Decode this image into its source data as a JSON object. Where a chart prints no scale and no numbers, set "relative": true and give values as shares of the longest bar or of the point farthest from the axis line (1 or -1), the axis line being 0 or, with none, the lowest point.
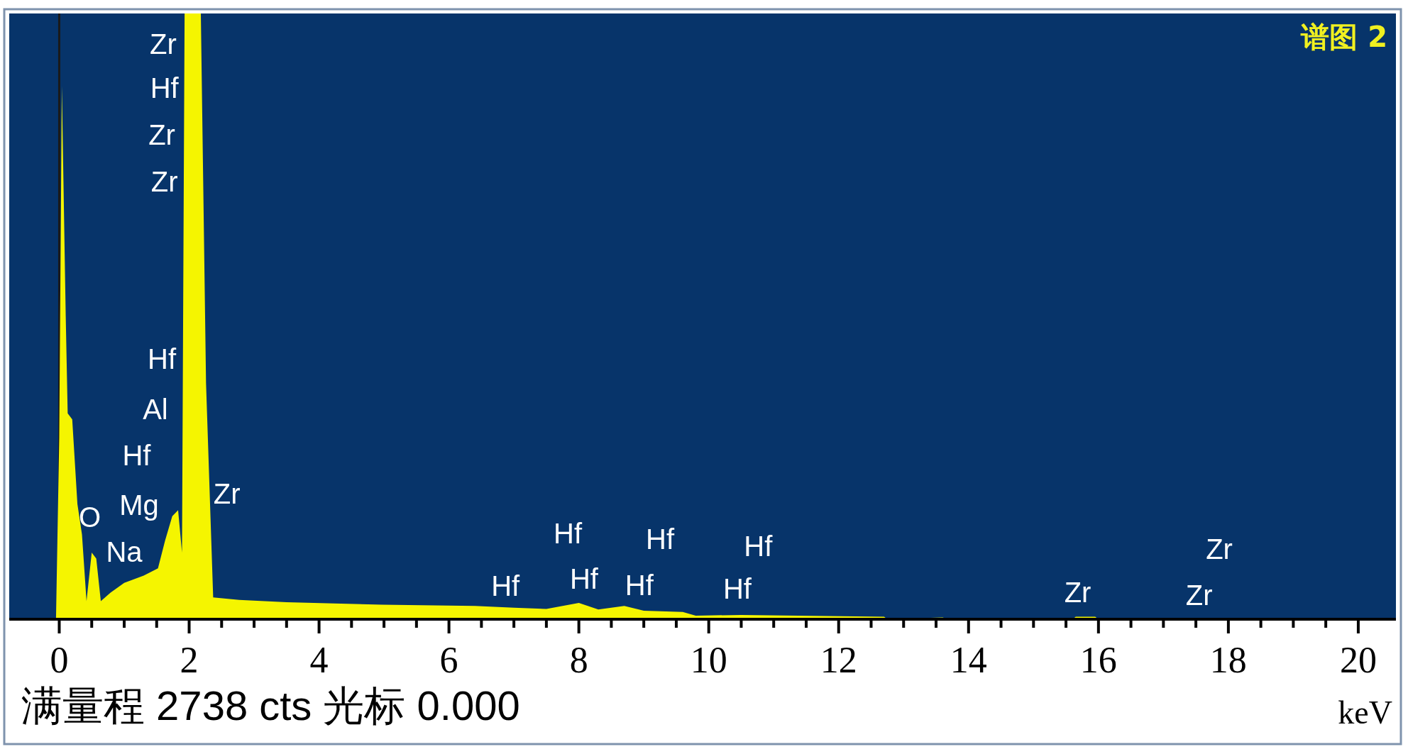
{
  "chart_data": {
    "type": "area",
    "relative": true,
    "title": "谱图 2",
    "xlabel": "keV",
    "x": [
      -0.05,
      0.0,
      0.04,
      0.1,
      0.13,
      0.2,
      0.28,
      0.35,
      0.42,
      0.5,
      0.57,
      0.64,
      0.79,
      1.0,
      1.3,
      1.52,
      1.63,
      1.74,
      1.83,
      1.89,
      1.93,
      2.18,
      2.26,
      2.37,
      2.77,
      3.5,
      4.23,
      4.97,
      6.4,
      7.0,
      7.5,
      8.0,
      8.3,
      8.7,
      9.0,
      9.6,
      9.8,
      10.5,
      12.7,
      12.75,
      13.6,
      13.7,
      15.6,
      15.65,
      15.95,
      16.0,
      20.5
    ],
    "values": [
      0,
      0.3,
      0.88,
      0.5,
      0.34,
      0.33,
      0.19,
      0.14,
      0.03,
      0.11,
      0.1,
      0.03,
      0.044,
      0.06,
      0.072,
      0.084,
      0.13,
      0.17,
      0.18,
      0.11,
      1,
      1,
      0.39,
      0.036,
      0.032,
      0.028,
      0.026,
      0.024,
      0.022,
      0.019,
      0.017,
      0.027,
      0.016,
      0.022,
      0.014,
      0.012,
      0.006,
      0.007,
      0.004,
      0,
      0.003,
      0,
      0,
      0.004,
      0.004,
      0,
      0
    ],
    "color": "#f5f500",
    "xlim": [
      -0.77,
      20.58
    ],
    "xticks": [
      0,
      {
        "value": 0.5,
        "label": null
      },
      {
        "value": 1,
        "label": null
      },
      {
        "value": 1.5,
        "label": null
      },
      2,
      {
        "value": 2.5,
        "label": null
      },
      {
        "value": 3,
        "label": null
      },
      {
        "value": 3.5,
        "label": null
      },
      4,
      {
        "value": 4.5,
        "label": null
      },
      {
        "value": 5,
        "label": null
      },
      {
        "value": 5.5,
        "label": null
      },
      6,
      {
        "value": 6.5,
        "label": null
      },
      {
        "value": 7,
        "label": null
      },
      {
        "value": 7.5,
        "label": null
      },
      8,
      {
        "value": 8.5,
        "label": null
      },
      {
        "value": 9,
        "label": null
      },
      {
        "value": 9.5,
        "label": null
      },
      10,
      {
        "value": 10.5,
        "label": null
      },
      {
        "value": 11,
        "label": null
      },
      {
        "value": 11.5,
        "label": null
      },
      12,
      {
        "value": 12.5,
        "label": null
      },
      {
        "value": 13,
        "label": null
      },
      {
        "value": 13.5,
        "label": null
      },
      14,
      {
        "value": 14.5,
        "label": null
      },
      {
        "value": 15,
        "label": null
      },
      {
        "value": 15.5,
        "label": null
      },
      16,
      {
        "value": 16.5,
        "label": null
      },
      {
        "value": 17,
        "label": null
      },
      {
        "value": 17.5,
        "label": null
      },
      18,
      {
        "value": 18.5,
        "label": null
      },
      {
        "value": 19,
        "label": null
      },
      {
        "value": 19.5,
        "label": null
      },
      20
    ],
    "ref_lines": [
      {
        "axis": "x",
        "value": 0,
        "color": "#1a1a1a"
      }
    ],
    "annotations": [
      "Zr",
      "Hf",
      "Zr",
      "Zr",
      "Hf",
      "Al",
      "Hf",
      "Mg",
      "O",
      "Na",
      "Zr",
      "Hf",
      "Hf",
      "Hf",
      "Hf",
      "Hf",
      "Hf",
      "Hf",
      "Zr",
      "Zr",
      "Zr",
      "满量程 2738 cts 光标 0.000"
    ]
  }
}
